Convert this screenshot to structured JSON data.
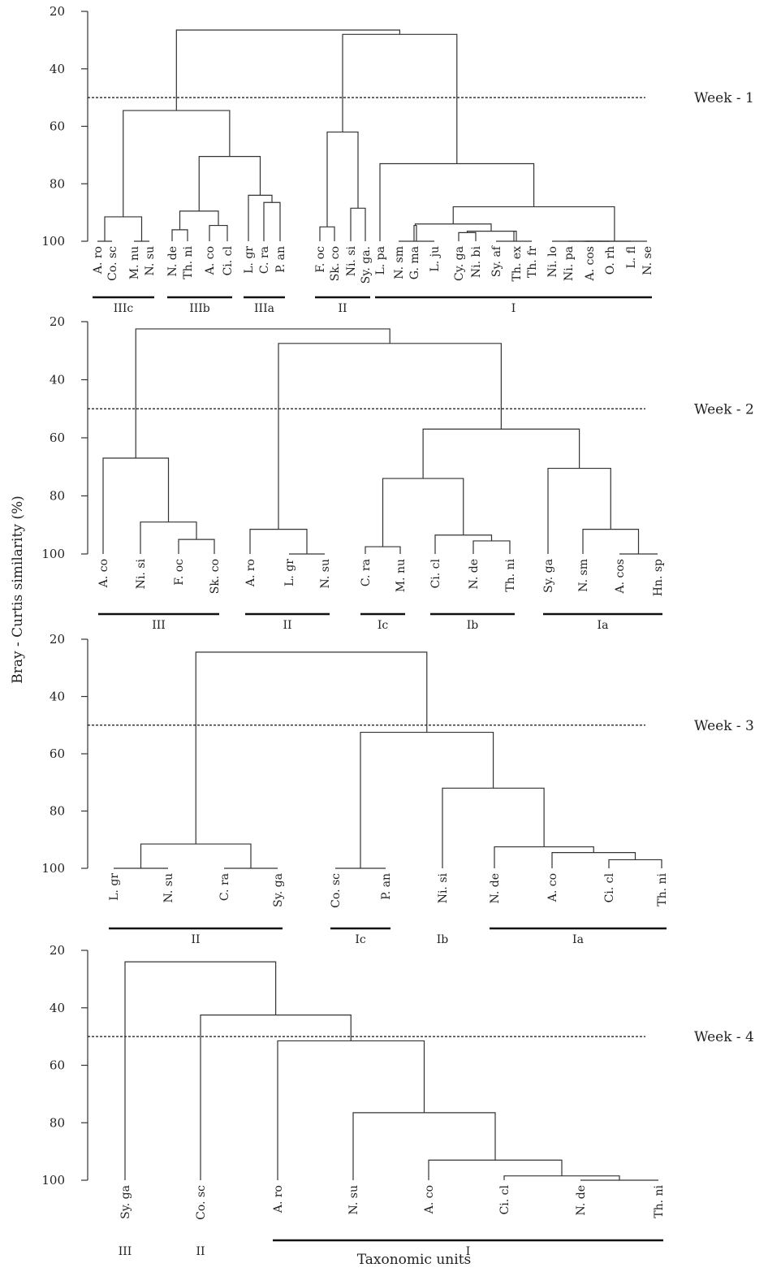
{
  "figure": {
    "ylabel": "Bray - Curtis similarity (%)",
    "xlabel": "Taxonomic units",
    "y_ticks": [
      20,
      40,
      60,
      80,
      100
    ]
  },
  "chart_data": [
    {
      "type": "dendrogram",
      "label": "Week - 1",
      "ylim": [
        20,
        100
      ],
      "cutoff": 50,
      "leaves": [
        "A. ro",
        "Co. sc",
        "M. nu",
        "N. su",
        "N. de",
        "Th. ni",
        "A. co",
        "Ci. cl",
        "L. gr",
        "C. ra",
        "P. an",
        "F. oc",
        "Sk. co",
        "Ni. si",
        "Sy. ga.",
        "L. pa",
        "N. sm",
        "G. ma",
        "L. ju",
        "Cy. ga",
        "Ni. bi",
        "Sy. af",
        "Th. ex",
        "Th. fr",
        "Ni. lo",
        "Ni. pa",
        "A. cos",
        "O. rh",
        "L. fl",
        "N. se"
      ],
      "merges": [
        {
          "a": [
            0
          ],
          "b": [
            1
          ],
          "h": 100
        },
        {
          "a": [
            2
          ],
          "b": [
            3
          ],
          "h": 100
        },
        {
          "a": [
            0,
            1
          ],
          "b": [
            2,
            3
          ],
          "h": 91.5
        },
        {
          "a": [
            4
          ],
          "b": [
            5
          ],
          "h": 96
        },
        {
          "a": [
            6
          ],
          "b": [
            7
          ],
          "h": 94.5
        },
        {
          "a": [
            4,
            5
          ],
          "b": [
            6,
            7
          ],
          "h": 89.5
        },
        {
          "a": [
            9
          ],
          "b": [
            10
          ],
          "h": 86.5
        },
        {
          "a": [
            8
          ],
          "b": [
            9,
            10
          ],
          "h": 84
        },
        {
          "a": [
            4,
            5,
            6,
            7
          ],
          "b": [
            8,
            9,
            10
          ],
          "h": 70.5
        },
        {
          "a": [
            0,
            1,
            2,
            3
          ],
          "b": [
            4,
            5,
            6,
            7,
            8,
            9,
            10
          ],
          "h": 54.5
        },
        {
          "a": [
            11
          ],
          "b": [
            12
          ],
          "h": 95
        },
        {
          "a": [
            13
          ],
          "b": [
            14
          ],
          "h": 88.5
        },
        {
          "a": [
            11,
            12
          ],
          "b": [
            13,
            14
          ],
          "h": 62
        },
        {
          "a": [
            16
          ],
          "b": [
            18
          ],
          "h": 100
        },
        {
          "a": [
            17
          ],
          "b": [
            16,
            18
          ],
          "h": 94.5
        },
        {
          "a": [
            19
          ],
          "b": [
            20
          ],
          "h": 97
        },
        {
          "a": [
            21
          ],
          "b": [
            23
          ],
          "h": 100
        },
        {
          "a": [
            22
          ],
          "b": [
            21,
            23
          ],
          "h": 96.5
        },
        {
          "a": [
            19,
            20
          ],
          "b": [
            21,
            22,
            23
          ],
          "h": 96.5
        },
        {
          "a": [
            16,
            17,
            18
          ],
          "b": [
            19,
            20,
            21,
            22,
            23
          ],
          "h": 94
        },
        {
          "a": [
            24
          ],
          "b": [
            29
          ],
          "h": 100
        },
        {
          "a": [
            25
          ],
          "b": [
            24,
            29
          ],
          "h": 100
        },
        {
          "a": [
            26
          ],
          "b": [
            24,
            25,
            29
          ],
          "h": 100
        },
        {
          "a": [
            27
          ],
          "b": [
            24,
            25,
            26,
            29
          ],
          "h": 100
        },
        {
          "a": [
            28
          ],
          "b": [
            24,
            25,
            26,
            27,
            29
          ],
          "h": 100
        },
        {
          "a": [
            16,
            17,
            18,
            19,
            20,
            21,
            22,
            23
          ],
          "b": [
            24,
            25,
            26,
            27,
            28,
            29
          ],
          "h": 88
        },
        {
          "a": [
            15
          ],
          "b": [
            16,
            17,
            18,
            19,
            20,
            21,
            22,
            23,
            24,
            25,
            26,
            27,
            28,
            29
          ],
          "h": 73
        },
        {
          "a": [
            11,
            12,
            13,
            14
          ],
          "b": [
            15,
            16,
            17,
            18,
            19,
            20,
            21,
            22,
            23,
            24,
            25,
            26,
            27,
            28,
            29
          ],
          "h": 28
        },
        {
          "a": [
            0,
            1,
            2,
            3,
            4,
            5,
            6,
            7,
            8,
            9,
            10
          ],
          "b": [
            11,
            12,
            13,
            14,
            15,
            16,
            17,
            18,
            19,
            20,
            21,
            22,
            23,
            24,
            25,
            26,
            27,
            28,
            29
          ],
          "h": 26.5
        }
      ],
      "groups": [
        {
          "label": "IIIc",
          "from": 0,
          "to": 3
        },
        {
          "label": "IIIb",
          "from": 4,
          "to": 7
        },
        {
          "label": "IIIa",
          "from": 8,
          "to": 10
        },
        {
          "label": "II",
          "from": 11,
          "to": 14
        },
        {
          "label": "I",
          "from": 15,
          "to": 29
        }
      ]
    },
    {
      "type": "dendrogram",
      "label": "Week - 2",
      "ylim": [
        20,
        100
      ],
      "cutoff": 50,
      "leaves": [
        "A. co",
        "Ni. si",
        "F. oc",
        "Sk. co",
        "A. ro",
        "L. gr",
        "N. su",
        "C. ra",
        "M. nu",
        "Ci. cl",
        "N. de",
        "Th. ni",
        "Sy. ga",
        "N. sm",
        "A. cos",
        "Hn. sp"
      ],
      "merges": [
        {
          "a": [
            2
          ],
          "b": [
            3
          ],
          "h": 95
        },
        {
          "a": [
            1
          ],
          "b": [
            2,
            3
          ],
          "h": 89
        },
        {
          "a": [
            0
          ],
          "b": [
            1,
            2,
            3
          ],
          "h": 67
        },
        {
          "a": [
            5
          ],
          "b": [
            6
          ],
          "h": 100
        },
        {
          "a": [
            4
          ],
          "b": [
            5,
            6
          ],
          "h": 91.5
        },
        {
          "a": [
            7
          ],
          "b": [
            8
          ],
          "h": 97.5
        },
        {
          "a": [
            10
          ],
          "b": [
            11
          ],
          "h": 95.5
        },
        {
          "a": [
            9
          ],
          "b": [
            10,
            11
          ],
          "h": 93.5
        },
        {
          "a": [
            7,
            8
          ],
          "b": [
            9,
            10,
            11
          ],
          "h": 74
        },
        {
          "a": [
            14
          ],
          "b": [
            15
          ],
          "h": 100
        },
        {
          "a": [
            13
          ],
          "b": [
            14,
            15
          ],
          "h": 91.5
        },
        {
          "a": [
            12
          ],
          "b": [
            13,
            14,
            15
          ],
          "h": 70.5
        },
        {
          "a": [
            7,
            8,
            9,
            10,
            11
          ],
          "b": [
            12,
            13,
            14,
            15
          ],
          "h": 57
        },
        {
          "a": [
            4,
            5,
            6
          ],
          "b": [
            7,
            8,
            9,
            10,
            11,
            12,
            13,
            14,
            15
          ],
          "h": 27.5
        },
        {
          "a": [
            0,
            1,
            2,
            3
          ],
          "b": [
            4,
            5,
            6,
            7,
            8,
            9,
            10,
            11,
            12,
            13,
            14,
            15
          ],
          "h": 22.5
        }
      ],
      "groups": [
        {
          "label": "III",
          "from": 0,
          "to": 3
        },
        {
          "label": "II",
          "from": 4,
          "to": 6
        },
        {
          "label": "Ic",
          "from": 7,
          "to": 8
        },
        {
          "label": "Ib",
          "from": 9,
          "to": 11
        },
        {
          "label": "Ia",
          "from": 12,
          "to": 15
        }
      ]
    },
    {
      "type": "dendrogram",
      "label": "Week - 3",
      "ylim": [
        20,
        100
      ],
      "cutoff": 50,
      "leaves": [
        "L. gr",
        "N. su",
        "C. ra",
        "Sy. ga",
        "Co. sc",
        "P. an",
        "Ni. si",
        "N. de",
        "A. co",
        "Ci. cl",
        "Th. ni"
      ],
      "merges": [
        {
          "a": [
            0
          ],
          "b": [
            1
          ],
          "h": 100
        },
        {
          "a": [
            2
          ],
          "b": [
            3
          ],
          "h": 100
        },
        {
          "a": [
            0,
            1
          ],
          "b": [
            2,
            3
          ],
          "h": 91.5
        },
        {
          "a": [
            4
          ],
          "b": [
            5
          ],
          "h": 100
        },
        {
          "a": [
            9
          ],
          "b": [
            10
          ],
          "h": 97
        },
        {
          "a": [
            8
          ],
          "b": [
            9,
            10
          ],
          "h": 94.5
        },
        {
          "a": [
            7
          ],
          "b": [
            8,
            9,
            10
          ],
          "h": 92.5
        },
        {
          "a": [
            6
          ],
          "b": [
            7,
            8,
            9,
            10
          ],
          "h": 72
        },
        {
          "a": [
            4,
            5
          ],
          "b": [
            6,
            7,
            8,
            9,
            10
          ],
          "h": 52.5
        },
        {
          "a": [
            0,
            1,
            2,
            3
          ],
          "b": [
            4,
            5,
            6,
            7,
            8,
            9,
            10
          ],
          "h": 24.5
        }
      ],
      "groups": [
        {
          "label": "II",
          "from": 0,
          "to": 3
        },
        {
          "label": "Ic",
          "from": 4,
          "to": 5
        },
        {
          "label": "Ib",
          "from": 6,
          "to": 6,
          "nobar": true
        },
        {
          "label": "Ia",
          "from": 7,
          "to": 10
        }
      ]
    },
    {
      "type": "dendrogram",
      "label": "Week - 4",
      "ylim": [
        20,
        100
      ],
      "cutoff": 50,
      "leaves": [
        "Sy. ga",
        "Co. sc",
        "A. ro",
        "N. su",
        "A. co",
        "Ci. cl",
        "N. de",
        "Th. ni"
      ],
      "merges": [
        {
          "a": [
            6
          ],
          "b": [
            7
          ],
          "h": 100
        },
        {
          "a": [
            5
          ],
          "b": [
            6,
            7
          ],
          "h": 98.5
        },
        {
          "a": [
            4
          ],
          "b": [
            5,
            6,
            7
          ],
          "h": 93
        },
        {
          "a": [
            3
          ],
          "b": [
            4,
            5,
            6,
            7
          ],
          "h": 76.5
        },
        {
          "a": [
            2
          ],
          "b": [
            3,
            4,
            5,
            6,
            7
          ],
          "h": 51.5
        },
        {
          "a": [
            1
          ],
          "b": [
            2,
            3,
            4,
            5,
            6,
            7
          ],
          "h": 42.5
        },
        {
          "a": [
            0
          ],
          "b": [
            1,
            2,
            3,
            4,
            5,
            6,
            7
          ],
          "h": 24
        }
      ],
      "groups": [
        {
          "label": "III",
          "from": 0,
          "to": 0,
          "nobar": true
        },
        {
          "label": "II",
          "from": 1,
          "to": 1,
          "nobar": true
        },
        {
          "label": "I",
          "from": 2,
          "to": 7
        }
      ]
    }
  ]
}
